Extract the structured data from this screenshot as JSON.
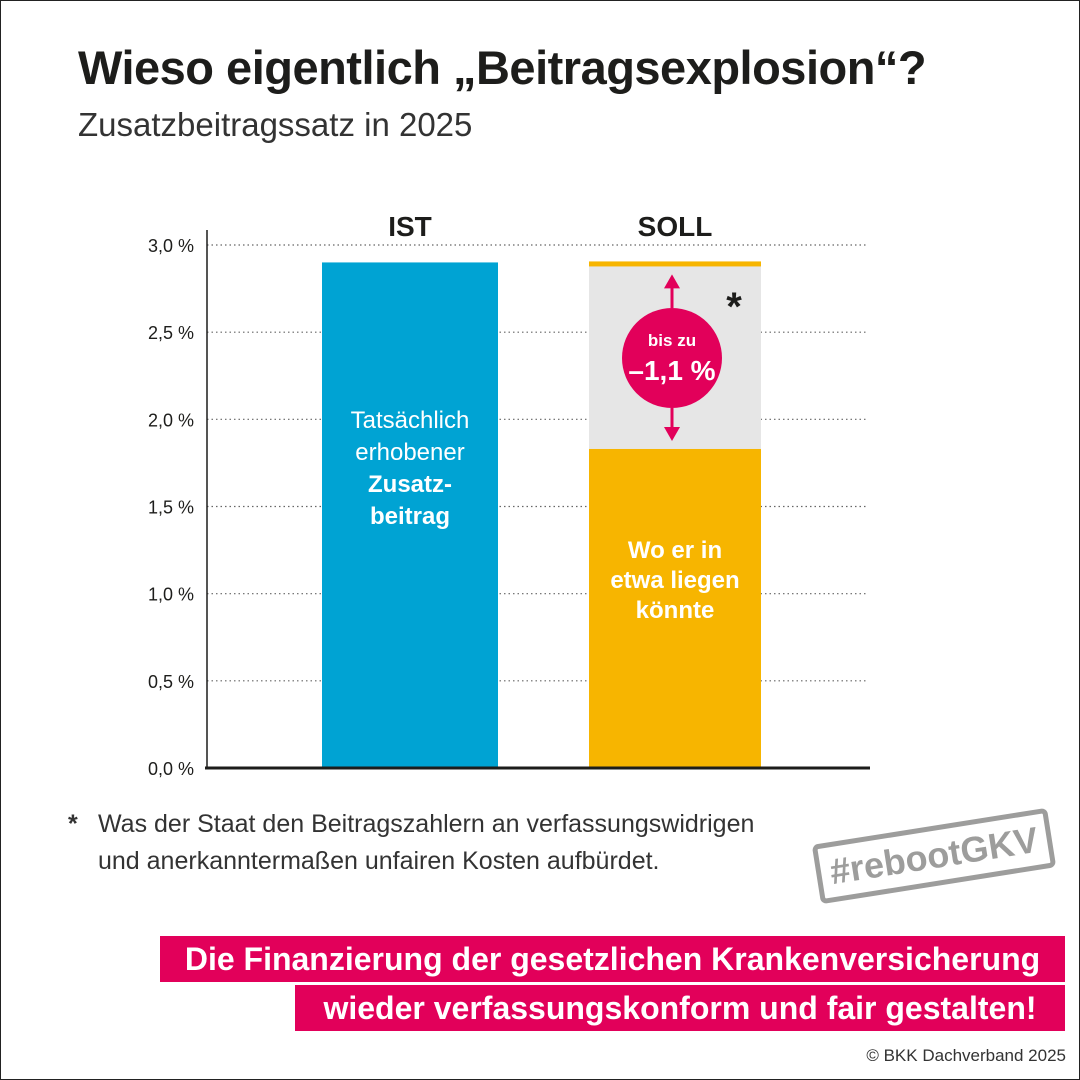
{
  "header": {
    "title": "Wieso eigentlich „Beitragsexplosion“?",
    "subtitle": "Zusatzbeitragssatz in 2025"
  },
  "chart_data": {
    "type": "bar",
    "title": "Wieso eigentlich „Beitragsexplosion“?",
    "subtitle": "Zusatzbeitragssatz in 2025",
    "categories": [
      "IST",
      "SOLL"
    ],
    "values": [
      2.9,
      1.83
    ],
    "soll_top_marker": 2.9,
    "gap_range": [
      1.83,
      2.9
    ],
    "unit": "%",
    "ylim": [
      0,
      3.0
    ],
    "yticks": [
      0,
      0.5,
      1.0,
      1.5,
      2.0,
      2.5,
      3.0
    ],
    "ytick_labels": [
      "0,0 %",
      "0,5 %",
      "1,0 %",
      "1,5 %",
      "2,0 %",
      "2,5 %",
      "3,0 %"
    ],
    "grid": true,
    "xlabel": "",
    "ylabel": "",
    "bar_labels": {
      "ist": {
        "line1": "Tatsächlich",
        "line2": "erhobener",
        "line3": "Zusatz-",
        "line4": "beitrag"
      },
      "soll": {
        "line1": "Wo er in",
        "line2": "etwa liegen",
        "line3": "könnte"
      }
    },
    "annotation": {
      "line1": "bis zu",
      "line2": "–1,1 %",
      "marker": "*"
    },
    "colors": {
      "ist": "#00a3d3",
      "soll": "#f7b500",
      "gap": "#e6e6e6",
      "annotation": "#e2005a",
      "grid": "#666666"
    }
  },
  "footnote": {
    "marker": "*",
    "line1": "Was der Staat den Beitragszahlern an verfassungswidrigen",
    "line2": "und anerkanntermaßen unfairen Kosten aufbürdet."
  },
  "hashtag": "#rebootGKV",
  "banner": {
    "line1": "Die Finanzierung der gesetzlichen Krankenversicherung",
    "line2": "wieder verfassungskonform und fair gestalten!"
  },
  "copyright": "© BKK Dachverband 2025"
}
